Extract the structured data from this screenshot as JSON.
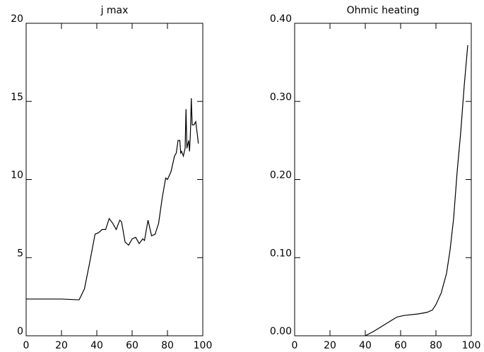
{
  "chart_data": [
    {
      "type": "line",
      "title": "j max",
      "color": "#000000",
      "x": [
        0,
        10,
        20,
        30,
        33,
        36,
        39,
        41,
        43,
        45,
        47,
        49,
        51,
        53,
        54,
        56,
        58,
        60,
        62,
        64,
        66,
        67,
        69,
        71,
        73,
        75,
        77,
        79,
        80,
        82,
        84,
        85,
        86,
        87,
        87.5,
        88,
        89,
        90,
        90.5,
        91,
        92,
        92.5,
        93,
        93.5,
        94,
        95,
        96,
        97,
        97.5
      ],
      "values": [
        2.35,
        2.35,
        2.35,
        2.3,
        3.0,
        4.7,
        6.5,
        6.6,
        6.8,
        6.8,
        7.5,
        7.2,
        6.8,
        7.4,
        7.3,
        6.0,
        5.8,
        6.2,
        6.3,
        5.9,
        6.2,
        6.1,
        7.4,
        6.4,
        6.5,
        7.2,
        8.8,
        10.1,
        10.0,
        10.5,
        11.5,
        11.7,
        12.5,
        12.5,
        11.7,
        11.8,
        11.5,
        12.0,
        14.5,
        12.0,
        12.5,
        11.8,
        13.0,
        15.2,
        13.5,
        13.5,
        13.7,
        12.8,
        12.3
      ],
      "xlim": [
        0,
        100
      ],
      "xticks": [
        0,
        20,
        40,
        60,
        80,
        100
      ],
      "ylim": [
        0,
        20
      ],
      "yticks": [
        0,
        5,
        10,
        15,
        20
      ]
    },
    {
      "type": "line",
      "title": "Ohmic heating",
      "color": "#000000",
      "x": [
        40,
        45,
        50,
        55,
        58,
        62,
        70,
        75,
        78,
        80,
        83,
        86,
        88,
        90,
        92,
        94,
        96,
        98
      ],
      "values": [
        0.0,
        0.006,
        0.013,
        0.02,
        0.024,
        0.026,
        0.028,
        0.03,
        0.033,
        0.04,
        0.055,
        0.08,
        0.11,
        0.15,
        0.21,
        0.26,
        0.32,
        0.372
      ],
      "xlim": [
        0,
        100
      ],
      "xticks": [
        0,
        20,
        40,
        60,
        80,
        100
      ],
      "ylim": [
        0,
        0.4
      ],
      "yticks": [
        {
          "value": 0,
          "label": "0.00"
        },
        {
          "value": 0.1,
          "label": "0.10"
        },
        {
          "value": 0.2,
          "label": "0.20"
        },
        {
          "value": 0.3,
          "label": "0.30"
        },
        {
          "value": 0.4,
          "label": "0.40"
        }
      ]
    }
  ]
}
